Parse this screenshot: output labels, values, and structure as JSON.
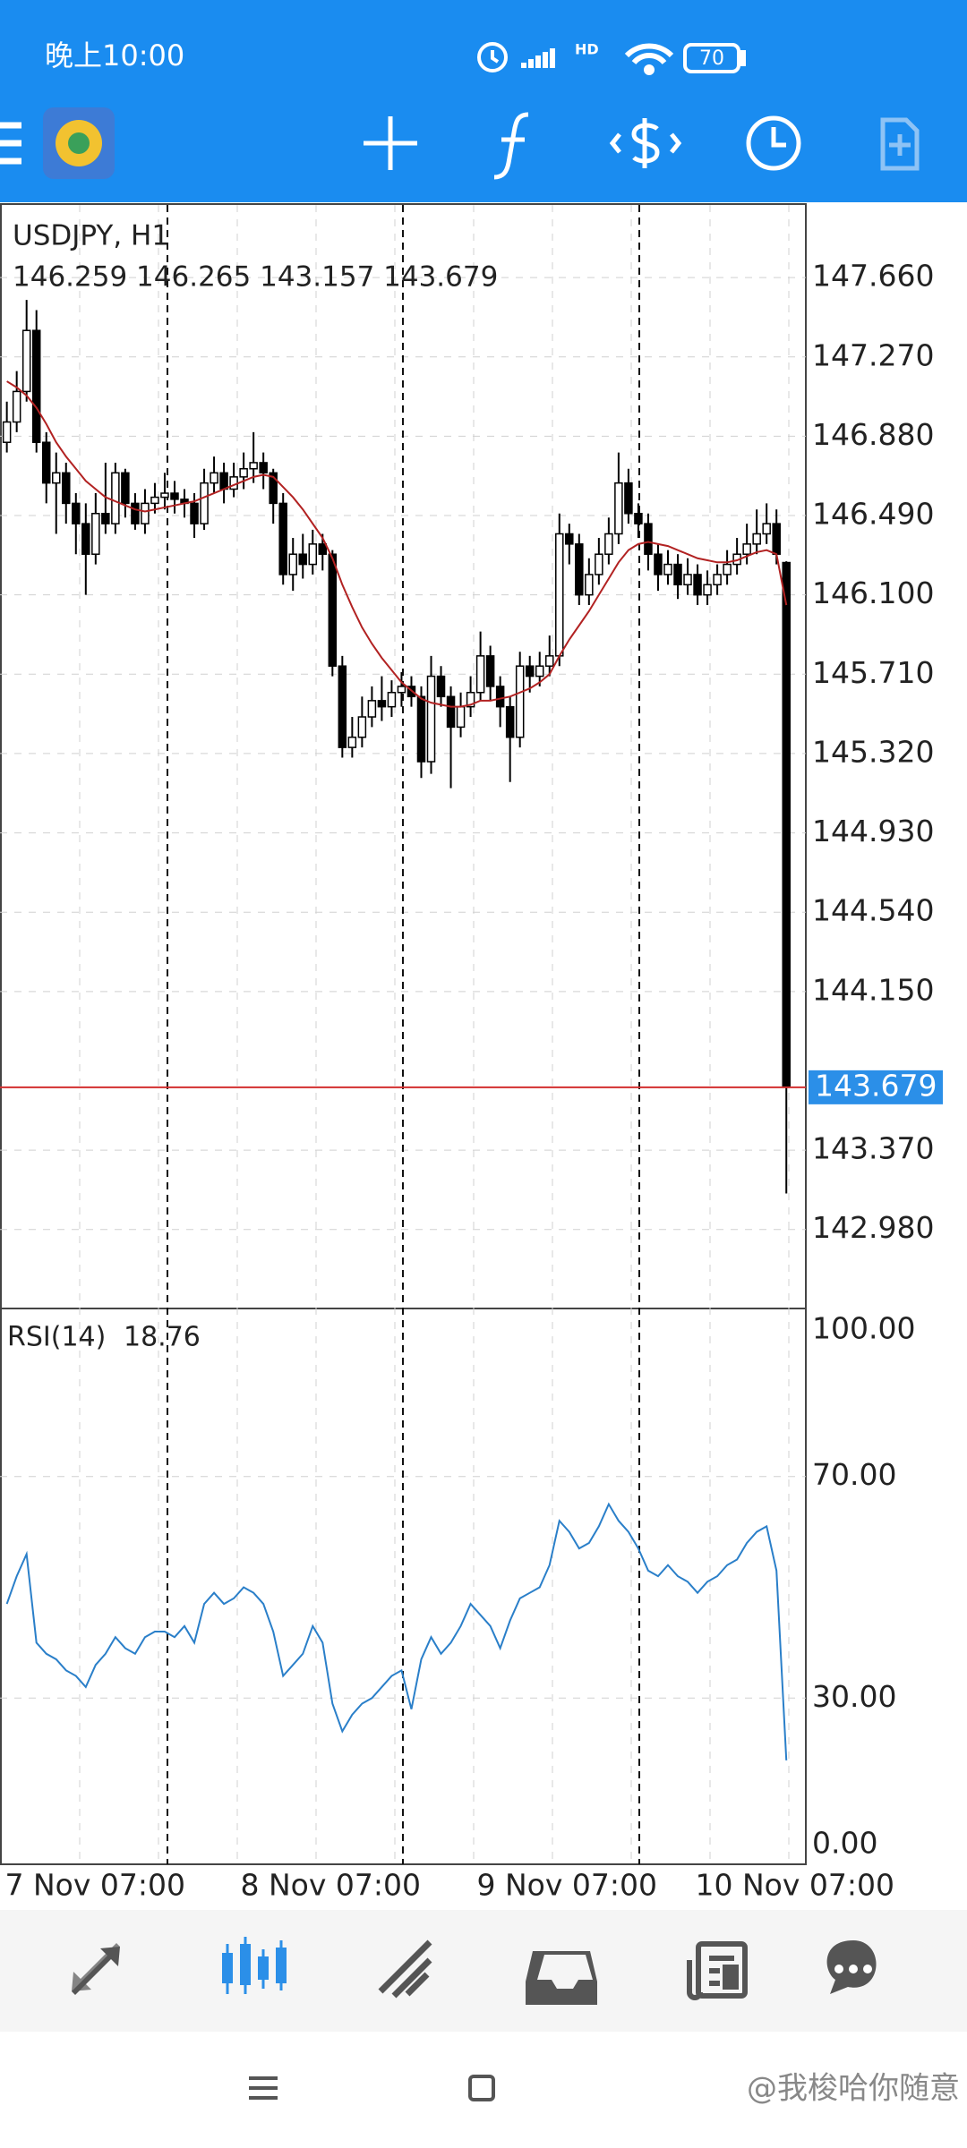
{
  "status_bar": {
    "time": "晚上10:00",
    "battery": "70"
  },
  "chart_data": {
    "type": "candlestick",
    "title": "USDJPY, H1",
    "ohlc": "146.259 146.265 143.157 143.679",
    "candles": [
      [
        146.85,
        147.05,
        146.8,
        146.95
      ],
      [
        146.95,
        147.2,
        146.9,
        147.1
      ],
      [
        147.1,
        147.55,
        147.05,
        147.4
      ],
      [
        147.4,
        147.5,
        146.8,
        146.85
      ],
      [
        146.85,
        146.9,
        146.55,
        146.65
      ],
      [
        146.65,
        146.8,
        146.4,
        146.7
      ],
      [
        146.7,
        146.75,
        146.45,
        146.55
      ],
      [
        146.55,
        146.6,
        146.3,
        146.45
      ],
      [
        146.45,
        146.55,
        146.1,
        146.3
      ],
      [
        146.3,
        146.6,
        146.25,
        146.5
      ],
      [
        146.5,
        146.75,
        146.4,
        146.45
      ],
      [
        146.45,
        146.75,
        146.4,
        146.7
      ],
      [
        146.7,
        146.72,
        146.48,
        146.55
      ],
      [
        146.55,
        146.6,
        146.42,
        146.45
      ],
      [
        146.45,
        146.62,
        146.4,
        146.55
      ],
      [
        146.55,
        146.65,
        146.5,
        146.58
      ],
      [
        146.58,
        146.7,
        146.52,
        146.6
      ],
      [
        146.6,
        146.66,
        146.5,
        146.57
      ],
      [
        146.57,
        146.62,
        146.48,
        146.55
      ],
      [
        146.55,
        146.6,
        146.38,
        146.45
      ],
      [
        146.45,
        146.72,
        146.42,
        146.65
      ],
      [
        146.65,
        146.78,
        146.6,
        146.7
      ],
      [
        146.7,
        146.75,
        146.55,
        146.62
      ],
      [
        146.62,
        146.75,
        146.58,
        146.68
      ],
      [
        146.68,
        146.8,
        146.62,
        146.72
      ],
      [
        146.72,
        146.9,
        146.65,
        146.75
      ],
      [
        146.75,
        146.8,
        146.62,
        146.7
      ],
      [
        146.7,
        146.72,
        146.45,
        146.55
      ],
      [
        146.55,
        146.6,
        146.15,
        146.2
      ],
      [
        146.2,
        146.38,
        146.12,
        146.3
      ],
      [
        146.3,
        146.4,
        146.18,
        146.25
      ],
      [
        146.25,
        146.42,
        146.2,
        146.35
      ],
      [
        146.35,
        146.4,
        146.22,
        146.3
      ],
      [
        146.3,
        146.32,
        145.7,
        145.75
      ],
      [
        145.75,
        145.8,
        145.3,
        145.35
      ],
      [
        145.35,
        145.5,
        145.3,
        145.4
      ],
      [
        145.4,
        145.6,
        145.35,
        145.5
      ],
      [
        145.5,
        145.65,
        145.45,
        145.58
      ],
      [
        145.58,
        145.7,
        145.48,
        145.55
      ],
      [
        145.55,
        145.68,
        145.5,
        145.62
      ],
      [
        145.62,
        145.72,
        145.55,
        145.65
      ],
      [
        145.65,
        145.7,
        145.55,
        145.6
      ],
      [
        145.6,
        145.65,
        145.2,
        145.28
      ],
      [
        145.28,
        145.8,
        145.22,
        145.7
      ],
      [
        145.7,
        145.75,
        145.55,
        145.6
      ],
      [
        145.6,
        145.65,
        145.15,
        145.45
      ],
      [
        145.45,
        145.62,
        145.4,
        145.55
      ],
      [
        145.55,
        145.7,
        145.5,
        145.62
      ],
      [
        145.62,
        145.92,
        145.58,
        145.8
      ],
      [
        145.8,
        145.85,
        145.58,
        145.65
      ],
      [
        145.65,
        145.7,
        145.45,
        145.55
      ],
      [
        145.55,
        145.6,
        145.18,
        145.4
      ],
      [
        145.4,
        145.82,
        145.35,
        145.75
      ],
      [
        145.75,
        145.8,
        145.62,
        145.7
      ],
      [
        145.7,
        145.82,
        145.65,
        145.75
      ],
      [
        145.75,
        145.9,
        145.7,
        145.8
      ],
      [
        145.8,
        146.5,
        145.75,
        146.4
      ],
      [
        146.4,
        146.45,
        146.25,
        146.35
      ],
      [
        146.35,
        146.4,
        146.05,
        146.1
      ],
      [
        146.1,
        146.28,
        146.05,
        146.2
      ],
      [
        146.2,
        146.38,
        146.15,
        146.3
      ],
      [
        146.3,
        146.48,
        146.25,
        146.4
      ],
      [
        146.4,
        146.8,
        146.35,
        146.65
      ],
      [
        146.65,
        146.72,
        146.45,
        146.5
      ],
      [
        146.5,
        146.55,
        146.38,
        146.45
      ],
      [
        146.45,
        146.5,
        146.22,
        146.3
      ],
      [
        146.3,
        146.35,
        146.12,
        146.2
      ],
      [
        146.2,
        146.32,
        146.15,
        146.25
      ],
      [
        146.25,
        146.3,
        146.08,
        146.15
      ],
      [
        146.15,
        146.28,
        146.1,
        146.2
      ],
      [
        146.2,
        146.25,
        146.05,
        146.1
      ],
      [
        146.1,
        146.22,
        146.05,
        146.15
      ],
      [
        146.15,
        146.25,
        146.1,
        146.2
      ],
      [
        146.2,
        146.32,
        146.15,
        146.25
      ],
      [
        146.25,
        146.38,
        146.2,
        146.3
      ],
      [
        146.3,
        146.45,
        146.25,
        146.35
      ],
      [
        146.35,
        146.52,
        146.3,
        146.4
      ],
      [
        146.4,
        146.55,
        146.35,
        146.45
      ],
      [
        146.45,
        146.52,
        146.25,
        146.3
      ],
      [
        146.259,
        146.265,
        143.157,
        143.679
      ]
    ],
    "ma": {
      "color": "#b22222",
      "values": [
        147.15,
        147.12,
        147.08,
        147.02,
        146.94,
        146.85,
        146.78,
        146.72,
        146.66,
        146.62,
        146.58,
        146.56,
        146.54,
        146.52,
        146.51,
        146.52,
        146.53,
        146.54,
        146.55,
        146.56,
        146.58,
        146.6,
        146.62,
        146.64,
        146.66,
        146.68,
        146.69,
        146.68,
        146.63,
        146.58,
        146.52,
        146.45,
        146.38,
        146.28,
        146.15,
        146.04,
        145.94,
        145.86,
        145.79,
        145.73,
        145.67,
        145.63,
        145.59,
        145.57,
        145.56,
        145.55,
        145.55,
        145.56,
        145.58,
        145.58,
        145.59,
        145.6,
        145.62,
        145.64,
        145.67,
        145.71,
        145.8,
        145.88,
        145.95,
        146.02,
        146.1,
        146.18,
        146.26,
        146.32,
        146.35,
        146.36,
        146.35,
        146.34,
        146.32,
        146.3,
        146.28,
        146.27,
        146.26,
        146.26,
        146.27,
        146.29,
        146.31,
        146.32,
        146.3,
        146.05
      ]
    },
    "ylim": [
      142.596,
      148.017
    ],
    "yticks": [
      {
        "value": 147.66,
        "label": "147.660"
      },
      {
        "value": 147.27,
        "label": "147.270"
      },
      {
        "value": 146.88,
        "label": "146.880"
      },
      {
        "value": 146.49,
        "label": "146.490"
      },
      {
        "value": 146.1,
        "label": "146.100"
      },
      {
        "value": 145.71,
        "label": "145.710"
      },
      {
        "value": 145.32,
        "label": "145.320"
      },
      {
        "value": 144.93,
        "label": "144.930"
      },
      {
        "value": 144.54,
        "label": "144.540"
      },
      {
        "value": 144.15,
        "label": "144.150"
      },
      {
        "value": 143.37,
        "label": "143.370"
      },
      {
        "value": 142.98,
        "label": "142.980"
      }
    ],
    "grid": true,
    "last_price": 143.679,
    "last_price_color": "#2b8fe8",
    "xticks": [
      "7 Nov 07:00",
      "8 Nov 07:00",
      "9 Nov 07:00",
      "10 Nov 07:00"
    ],
    "rsi": {
      "name": "RSI(14)",
      "color": "#2a7fc9",
      "ylim": [
        0,
        100
      ],
      "yticks": [
        {
          "value": 100,
          "label": "100.00"
        },
        {
          "value": 70,
          "label": "70.00"
        },
        {
          "value": 30,
          "label": "30.00"
        },
        {
          "value": 0,
          "label": "0.00"
        }
      ],
      "values": [
        47,
        52,
        56,
        40,
        38,
        37,
        35,
        34,
        32,
        36,
        38,
        41,
        39,
        38,
        41,
        42,
        42,
        41,
        43,
        40,
        47,
        49,
        47,
        48,
        50,
        49,
        47,
        42,
        34,
        36,
        38,
        43,
        40,
        29,
        24,
        27,
        29,
        30,
        32,
        34,
        35,
        28,
        37,
        41,
        38,
        40,
        43,
        47,
        45,
        43,
        39,
        44,
        48,
        49,
        50,
        54,
        62,
        60,
        57,
        58,
        61,
        65,
        62,
        60,
        57,
        53,
        52,
        54,
        52,
        51,
        49,
        51,
        52,
        54,
        55,
        58,
        60,
        61,
        53,
        18.76
      ]
    }
  },
  "watermark": "@我梭哈你随意"
}
